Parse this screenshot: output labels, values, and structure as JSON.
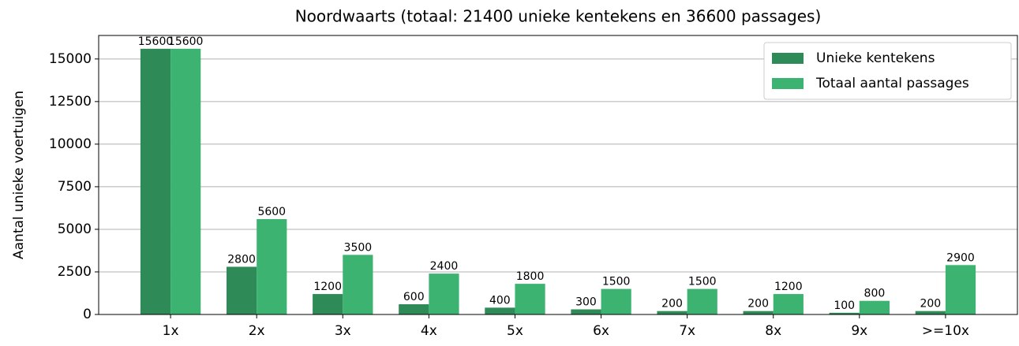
{
  "chart_data": {
    "type": "bar",
    "title": "Noordwaarts (totaal: 21400 unieke kentekens en 36600 passages)",
    "y_label": "Aantal unieke voertuigen",
    "categories": [
      "1x",
      "2x",
      "3x",
      "4x",
      "5x",
      "6x",
      "7x",
      "8x",
      "9x",
      ">=10x"
    ],
    "series": [
      {
        "name": "Unieke kentekens",
        "color": "#2e8b57",
        "values": [
          15600,
          2800,
          1200,
          600,
          400,
          300,
          200,
          200,
          100,
          200
        ]
      },
      {
        "name": "Totaal aantal passages",
        "color": "#3cb371",
        "values": [
          15600,
          5600,
          3500,
          2400,
          1800,
          1500,
          1500,
          1200,
          800,
          2900
        ]
      }
    ],
    "ylim": [
      0,
      16380
    ],
    "yticks": [
      0,
      2500,
      5000,
      7500,
      10000,
      12500,
      15000
    ],
    "grid": true,
    "legend": "upper right"
  }
}
